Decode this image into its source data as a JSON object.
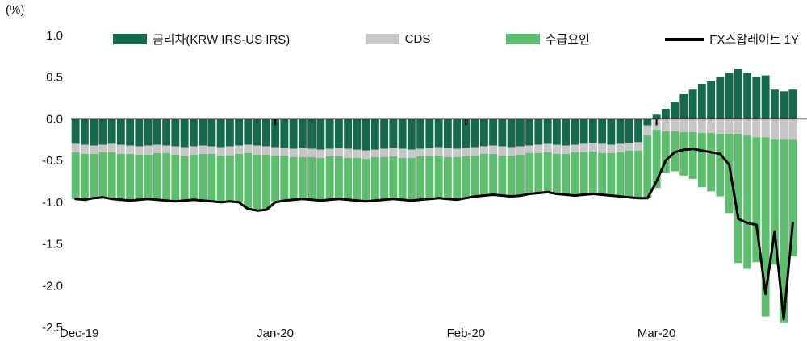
{
  "chart": {
    "unit_label": "(%)",
    "legend": [
      {
        "label": "금리차(KRW IRS-US IRS)",
        "type": "box",
        "color": "#17694d"
      },
      {
        "label": "CDS",
        "type": "box",
        "color": "#c6c6c6"
      },
      {
        "label": "수급요인",
        "type": "box",
        "color": "#5fbd6f"
      },
      {
        "label": "FX스왑레이트 1Y",
        "type": "line",
        "color": "#000000"
      }
    ]
  },
  "chart_data": {
    "type": "bar",
    "subtype": "stacked-bar-with-line",
    "title": "",
    "xlabel": "",
    "ylabel": "(%)",
    "ylim": [
      -2.5,
      1.0
    ],
    "grid": false,
    "legend_position": "top",
    "y_ticks": [
      1.0,
      0.5,
      0.0,
      -0.5,
      -1.0,
      -1.5,
      -2.0,
      -2.5
    ],
    "y_tick_labels": [
      "1.0",
      "0.5",
      "0.0",
      "-0.5",
      "-1.0",
      "-1.5",
      "-2.0",
      "-2.5"
    ],
    "x_tick_labels": [
      "Dec-19",
      "Jan-20",
      "Feb-20",
      "Mar-20"
    ],
    "x_tick_indices": [
      0,
      22,
      43,
      64
    ],
    "n_points": 80,
    "series": [
      {
        "name": "금리차(KRW IRS-US IRS)",
        "type": "bar",
        "color": "#17694d",
        "values": [
          -0.3,
          -0.31,
          -0.32,
          -0.31,
          -0.3,
          -0.31,
          -0.32,
          -0.33,
          -0.32,
          -0.31,
          -0.32,
          -0.33,
          -0.34,
          -0.33,
          -0.32,
          -0.33,
          -0.34,
          -0.33,
          -0.32,
          -0.31,
          -0.32,
          -0.33,
          -0.34,
          -0.35,
          -0.36,
          -0.35,
          -0.36,
          -0.37,
          -0.36,
          -0.35,
          -0.36,
          -0.37,
          -0.38,
          -0.37,
          -0.36,
          -0.35,
          -0.36,
          -0.37,
          -0.36,
          -0.35,
          -0.34,
          -0.35,
          -0.36,
          -0.35,
          -0.34,
          -0.33,
          -0.32,
          -0.33,
          -0.34,
          -0.33,
          -0.32,
          -0.31,
          -0.3,
          -0.31,
          -0.32,
          -0.31,
          -0.3,
          -0.29,
          -0.3,
          -0.31,
          -0.3,
          -0.29,
          -0.28,
          -0.08,
          0.05,
          0.12,
          0.2,
          0.3,
          0.35,
          0.42,
          0.45,
          0.5,
          0.55,
          0.6,
          0.55,
          0.5,
          0.52,
          0.35,
          0.33,
          0.35
        ]
      },
      {
        "name": "CDS",
        "type": "bar",
        "color": "#c6c6c6",
        "values": [
          -0.1,
          -0.11,
          -0.1,
          -0.09,
          -0.1,
          -0.11,
          -0.1,
          -0.1,
          -0.11,
          -0.1,
          -0.09,
          -0.1,
          -0.11,
          -0.1,
          -0.1,
          -0.09,
          -0.1,
          -0.11,
          -0.1,
          -0.1,
          -0.11,
          -0.1,
          -0.1,
          -0.09,
          -0.1,
          -0.11,
          -0.1,
          -0.1,
          -0.09,
          -0.1,
          -0.11,
          -0.1,
          -0.1,
          -0.09,
          -0.1,
          -0.1,
          -0.11,
          -0.1,
          -0.09,
          -0.1,
          -0.1,
          -0.11,
          -0.1,
          -0.1,
          -0.1,
          -0.09,
          -0.1,
          -0.11,
          -0.1,
          -0.1,
          -0.09,
          -0.1,
          -0.1,
          -0.11,
          -0.1,
          -0.09,
          -0.1,
          -0.1,
          -0.11,
          -0.1,
          -0.1,
          -0.09,
          -0.1,
          -0.12,
          -0.13,
          -0.15,
          -0.15,
          -0.16,
          -0.16,
          -0.17,
          -0.17,
          -0.18,
          -0.18,
          -0.18,
          -0.2,
          -0.22,
          -0.22,
          -0.25,
          -0.25,
          -0.25
        ]
      },
      {
        "name": "수급요인",
        "type": "bar",
        "color": "#5fbd6f",
        "values": [
          -0.56,
          -0.55,
          -0.53,
          -0.54,
          -0.56,
          -0.55,
          -0.56,
          -0.54,
          -0.53,
          -0.56,
          -0.57,
          -0.56,
          -0.53,
          -0.54,
          -0.56,
          -0.57,
          -0.56,
          -0.55,
          -0.58,
          -0.67,
          -0.67,
          -0.66,
          -0.56,
          -0.54,
          -0.51,
          -0.5,
          -0.51,
          -0.51,
          -0.52,
          -0.51,
          -0.5,
          -0.51,
          -0.51,
          -0.52,
          -0.51,
          -0.51,
          -0.5,
          -0.51,
          -0.52,
          -0.51,
          -0.51,
          -0.5,
          -0.51,
          -0.5,
          -0.49,
          -0.5,
          -0.49,
          -0.48,
          -0.49,
          -0.49,
          -0.49,
          -0.48,
          -0.48,
          -0.48,
          -0.49,
          -0.52,
          -0.51,
          -0.51,
          -0.5,
          -0.51,
          -0.53,
          -0.56,
          -0.57,
          -0.75,
          -0.7,
          -0.5,
          -0.48,
          -0.52,
          -0.56,
          -0.65,
          -0.7,
          -0.75,
          -0.95,
          -1.55,
          -1.6,
          -1.5,
          -2.15,
          -1.5,
          -2.2,
          -1.4
        ]
      },
      {
        "name": "FX스왑레이트 1Y",
        "type": "line",
        "color": "#000000",
        "values": [
          -0.96,
          -0.97,
          -0.95,
          -0.94,
          -0.96,
          -0.97,
          -0.98,
          -0.97,
          -0.96,
          -0.97,
          -0.98,
          -0.99,
          -0.98,
          -0.97,
          -0.98,
          -0.99,
          -1.0,
          -0.99,
          -1.0,
          -1.08,
          -1.1,
          -1.09,
          -1.0,
          -0.98,
          -0.97,
          -0.96,
          -0.97,
          -0.98,
          -0.97,
          -0.96,
          -0.97,
          -0.98,
          -0.99,
          -0.98,
          -0.97,
          -0.96,
          -0.97,
          -0.98,
          -0.97,
          -0.96,
          -0.95,
          -0.96,
          -0.97,
          -0.95,
          -0.93,
          -0.92,
          -0.91,
          -0.92,
          -0.93,
          -0.92,
          -0.9,
          -0.89,
          -0.88,
          -0.9,
          -0.91,
          -0.92,
          -0.91,
          -0.9,
          -0.91,
          -0.92,
          -0.93,
          -0.94,
          -0.95,
          -0.95,
          -0.75,
          -0.5,
          -0.4,
          -0.37,
          -0.36,
          -0.38,
          -0.4,
          -0.42,
          -0.55,
          -1.2,
          -1.25,
          -1.27,
          -2.1,
          -1.35,
          -2.4,
          -1.25
        ]
      }
    ]
  }
}
